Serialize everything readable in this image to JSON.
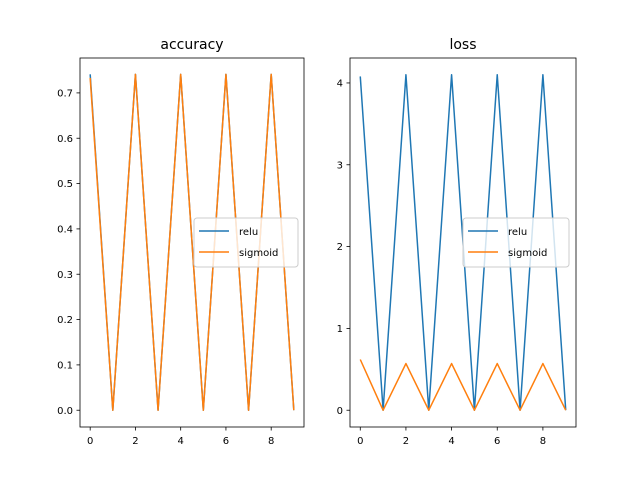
{
  "chart_data": [
    {
      "type": "line",
      "title": "accuracy",
      "xlabel": "",
      "ylabel": "",
      "x": [
        0,
        1,
        2,
        3,
        4,
        5,
        6,
        7,
        8,
        9
      ],
      "xlim": [
        -0.45,
        9.45
      ],
      "ylim": [
        -0.037,
        0.777
      ],
      "xticks": [
        0,
        2,
        4,
        6,
        8
      ],
      "yticks": [
        0.0,
        0.1,
        0.2,
        0.3,
        0.4,
        0.5,
        0.6,
        0.7
      ],
      "xtick_labels": [
        "0",
        "2",
        "4",
        "6",
        "8"
      ],
      "ytick_labels": [
        "0.0",
        "0.1",
        "0.2",
        "0.3",
        "0.4",
        "0.5",
        "0.6",
        "0.7"
      ],
      "grid": false,
      "legend": "center-right",
      "series": [
        {
          "name": "relu",
          "color": "#1f77b4",
          "values": [
            0.741,
            0.0,
            0.741,
            0.0,
            0.741,
            0.0,
            0.741,
            0.0,
            0.741,
            0.0
          ]
        },
        {
          "name": "sigmoid",
          "color": "#ff7f0e",
          "values": [
            0.733,
            0.0,
            0.741,
            0.0,
            0.741,
            0.0,
            0.741,
            0.0,
            0.741,
            0.0
          ]
        }
      ]
    },
    {
      "type": "line",
      "title": "loss",
      "xlabel": "",
      "ylabel": "",
      "x": [
        0,
        1,
        2,
        3,
        4,
        5,
        6,
        7,
        8,
        9
      ],
      "xlim": [
        -0.45,
        9.45
      ],
      "ylim": [
        -0.205,
        4.305
      ],
      "xticks": [
        0,
        2,
        4,
        6,
        8
      ],
      "yticks": [
        0,
        1,
        2,
        3,
        4
      ],
      "xtick_labels": [
        "0",
        "2",
        "4",
        "6",
        "8"
      ],
      "ytick_labels": [
        "0",
        "1",
        "2",
        "3",
        "4"
      ],
      "grid": false,
      "legend": "center-right",
      "series": [
        {
          "name": "relu",
          "color": "#1f77b4",
          "values": [
            4.08,
            0.0,
            4.1,
            0.0,
            4.1,
            0.0,
            4.1,
            0.0,
            4.1,
            0.0
          ]
        },
        {
          "name": "sigmoid",
          "color": "#ff7f0e",
          "values": [
            0.62,
            0.0,
            0.57,
            0.0,
            0.57,
            0.0,
            0.57,
            0.0,
            0.57,
            0.0
          ]
        }
      ]
    }
  ]
}
